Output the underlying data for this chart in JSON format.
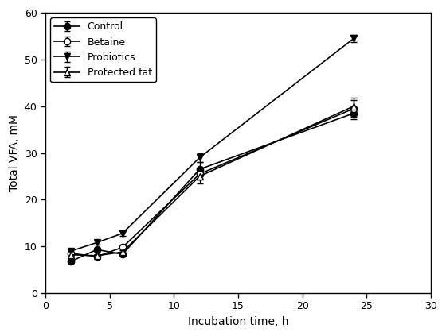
{
  "x": [
    2,
    4,
    6,
    12,
    24
  ],
  "series": {
    "Control": {
      "y": [
        6.8,
        9.3,
        8.3,
        26.5,
        38.5
      ],
      "yerr": [
        0.3,
        0.4,
        0.3,
        1.5,
        1.2
      ],
      "marker": "o",
      "fillstyle": "full",
      "color": "black",
      "linestyle": "-"
    },
    "Betaine": {
      "y": [
        8.5,
        7.8,
        9.8,
        25.5,
        39.5
      ],
      "yerr": [
        0.3,
        0.4,
        0.3,
        1.2,
        1.8
      ],
      "marker": "o",
      "fillstyle": "none",
      "color": "black",
      "linestyle": "-"
    },
    "Probiotics": {
      "y": [
        9.0,
        10.8,
        12.8,
        29.0,
        54.5
      ],
      "yerr": [
        0.3,
        0.4,
        0.5,
        1.0,
        0.8
      ],
      "marker": "v",
      "fillstyle": "full",
      "color": "black",
      "linestyle": "-"
    },
    "Protected fat": {
      "y": [
        8.2,
        8.0,
        8.8,
        25.0,
        40.0
      ],
      "yerr": [
        0.3,
        0.4,
        0.3,
        1.5,
        1.8
      ],
      "marker": "^",
      "fillstyle": "none",
      "color": "black",
      "linestyle": "-"
    }
  },
  "xlabel": "Incubation time, h",
  "ylabel": "Total VFA, mM",
  "xlim": [
    0,
    30
  ],
  "ylim": [
    0,
    60
  ],
  "xticks": [
    0,
    5,
    10,
    15,
    20,
    25,
    30
  ],
  "yticks": [
    0,
    10,
    20,
    30,
    40,
    50,
    60
  ],
  "text_color": "black",
  "legend_order": [
    "Control",
    "Betaine",
    "Probiotics",
    "Protected fat"
  ]
}
